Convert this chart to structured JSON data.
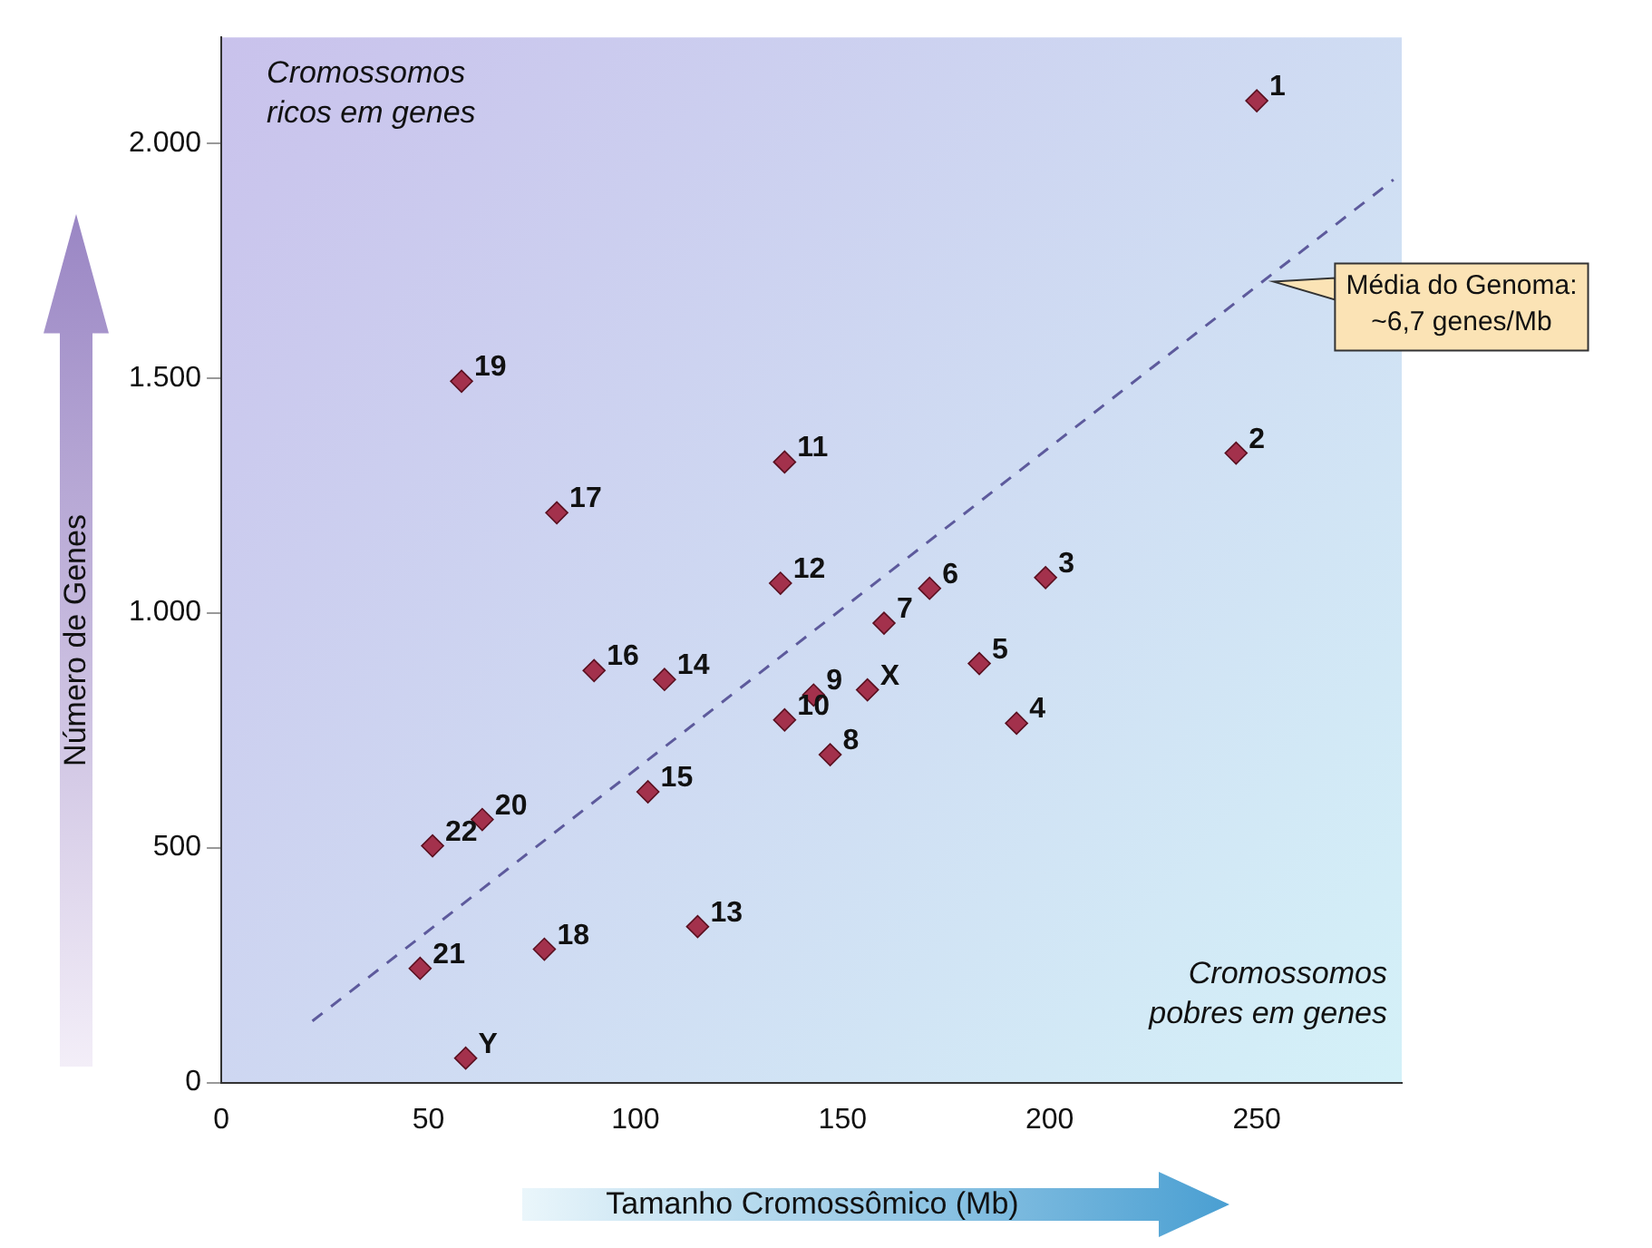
{
  "chart_data": {
    "type": "scatter",
    "xlabel": "Tamanho Cromossômico (Mb)",
    "ylabel": "Número de Genes",
    "xlim": [
      0,
      285
    ],
    "ylim": [
      0,
      2225
    ],
    "xticks": [
      0,
      50,
      100,
      150,
      200,
      250
    ],
    "yticks": [
      0,
      500,
      {
        "value": 1000,
        "label": "1.000"
      },
      {
        "value": 1500,
        "label": "1.500"
      },
      {
        "value": 2000,
        "label": "2.000"
      }
    ],
    "grid": false,
    "legend": false,
    "marker": "diamond",
    "series": [
      {
        "color": "#a3314c",
        "x": [
          250,
          245,
          199,
          192,
          183,
          171,
          160,
          147,
          143,
          136,
          136,
          135,
          115,
          107,
          103,
          90,
          81,
          78,
          58,
          63,
          48,
          51,
          156,
          59
        ],
        "values": [
          2090,
          1340,
          1075,
          765,
          892,
          1052,
          978,
          698,
          825,
          772,
          1321,
          1063,
          332,
          858,
          619,
          877,
          1213,
          284,
          1493,
          560,
          243,
          504,
          836,
          52
        ]
      },
      {
        "type": "line",
        "color": "#5d5a9c",
        "line_style": "dashed",
        "marker": "none",
        "x": [
          22,
          283
        ],
        "values": [
          131,
          1922
        ]
      }
    ],
    "annotations": [
      "Cromossomos\nricos em genes",
      "Cromossomos\npobres em genes",
      {
        "text": "Média do Genoma:\n~6,7 genes/Mb",
        "x": 254,
        "y": 1705
      },
      {
        "text": "1",
        "x": 250,
        "y": 2090
      },
      {
        "text": "2",
        "x": 245,
        "y": 1340
      },
      {
        "text": "3",
        "x": 199,
        "y": 1075
      },
      {
        "text": "4",
        "x": 192,
        "y": 765
      },
      {
        "text": "5",
        "x": 183,
        "y": 892
      },
      {
        "text": "6",
        "x": 171,
        "y": 1052
      },
      {
        "text": "7",
        "x": 160,
        "y": 978
      },
      {
        "text": "8",
        "x": 147,
        "y": 698
      },
      {
        "text": "9",
        "x": 143,
        "y": 825
      },
      {
        "text": "10",
        "x": 136,
        "y": 772
      },
      {
        "text": "11",
        "x": 136,
        "y": 1321
      },
      {
        "text": "12",
        "x": 135,
        "y": 1063
      },
      {
        "text": "13",
        "x": 115,
        "y": 332
      },
      {
        "text": "14",
        "x": 107,
        "y": 858
      },
      {
        "text": "15",
        "x": 103,
        "y": 619
      },
      {
        "text": "16",
        "x": 90,
        "y": 877
      },
      {
        "text": "17",
        "x": 81,
        "y": 1213
      },
      {
        "text": "18",
        "x": 78,
        "y": 284
      },
      {
        "text": "19",
        "x": 58,
        "y": 1493
      },
      {
        "text": "20",
        "x": 63,
        "y": 560
      },
      {
        "text": "21",
        "x": 48,
        "y": 243
      },
      {
        "text": "22",
        "x": 51,
        "y": 504
      },
      {
        "text": "X",
        "x": 156,
        "y": 836
      },
      {
        "text": "Y",
        "x": 59,
        "y": 52
      }
    ]
  }
}
